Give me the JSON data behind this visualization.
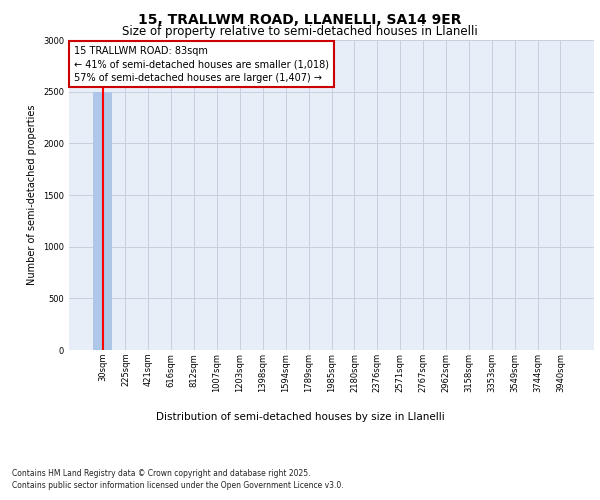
{
  "title_line1": "15, TRALLWM ROAD, LLANELLI, SA14 9ER",
  "title_line2": "Size of property relative to semi-detached houses in Llanelli",
  "xlabel": "Distribution of semi-detached houses by size in Llanelli",
  "ylabel": "Number of semi-detached properties",
  "annotation_title": "15 TRALLWM ROAD: 83sqm",
  "annotation_line2": "← 41% of semi-detached houses are smaller (1,018)",
  "annotation_line3": "57% of semi-detached houses are larger (1,407) →",
  "footer_line1": "Contains HM Land Registry data © Crown copyright and database right 2025.",
  "footer_line2": "Contains public sector information licensed under the Open Government Licence v3.0.",
  "categories": [
    "30sqm",
    "225sqm",
    "421sqm",
    "616sqm",
    "812sqm",
    "1007sqm",
    "1203sqm",
    "1398sqm",
    "1594sqm",
    "1789sqm",
    "1985sqm",
    "2180sqm",
    "2376sqm",
    "2571sqm",
    "2767sqm",
    "2962sqm",
    "3158sqm",
    "3353sqm",
    "3549sqm",
    "3744sqm",
    "3940sqm"
  ],
  "values": [
    2500,
    0,
    0,
    0,
    0,
    0,
    0,
    0,
    0,
    0,
    0,
    0,
    0,
    0,
    0,
    0,
    0,
    0,
    0,
    0,
    0
  ],
  "bar_color": "#aec6e8",
  "property_bar_index": 0,
  "ylim": [
    0,
    3000
  ],
  "yticks": [
    0,
    500,
    1000,
    1500,
    2000,
    2500,
    3000
  ],
  "annotation_box_edgecolor": "#cc0000",
  "bg_color": "#e8eef7",
  "grid_color": "#c8d0e0",
  "title1_fontsize": 10,
  "title2_fontsize": 8.5,
  "ylabel_fontsize": 7,
  "xlabel_fontsize": 7.5,
  "tick_fontsize": 6,
  "annotation_fontsize": 7,
  "footer_fontsize": 5.5
}
